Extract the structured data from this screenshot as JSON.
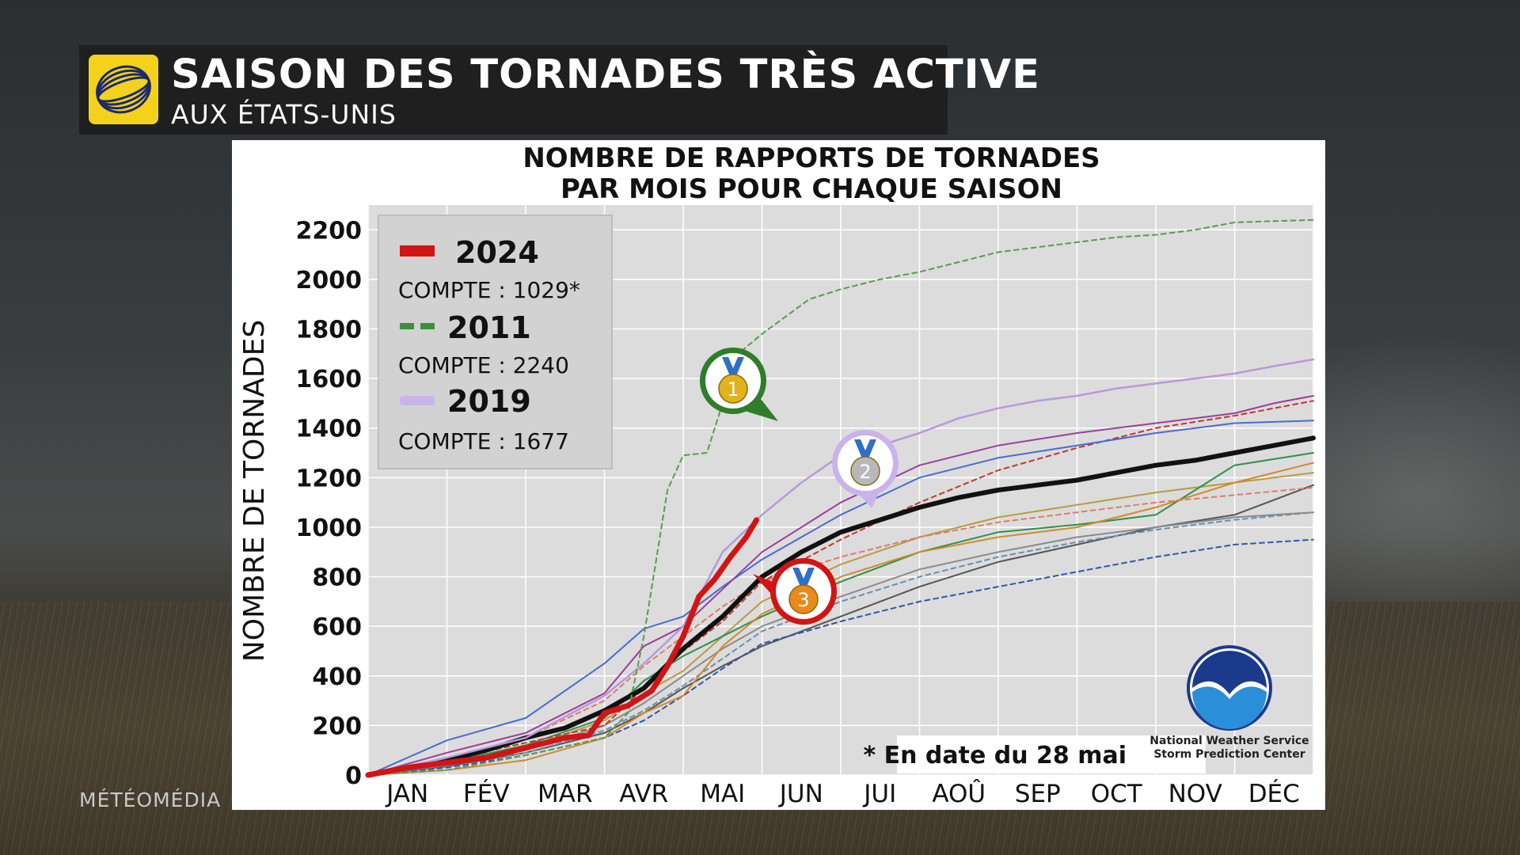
{
  "header": {
    "title": "SAISON DES TORNADES TRÈS ACTIVE",
    "subtitle": "AUX ÉTATS-UNIS"
  },
  "brand": "MÉTÉOMÉDIA",
  "chart_data": {
    "type": "line",
    "title_line1": "NOMBRE DE RAPPORTS DE TORNADES",
    "title_line2": "PAR MOIS POUR CHAQUE SAISON",
    "ylabel": "NOMBRE DE TORNADES",
    "xlabel": "",
    "ylim": [
      0,
      2300
    ],
    "yticks": [
      0,
      200,
      400,
      600,
      800,
      1000,
      1200,
      1400,
      1600,
      1800,
      2000,
      2200
    ],
    "xlim": [
      0,
      12
    ],
    "categories": [
      "JAN",
      "FÉV",
      "MAR",
      "AVR",
      "MAI",
      "JUN",
      "JUI",
      "AOÛ",
      "SEP",
      "OCT",
      "NOV",
      "DÉC"
    ],
    "grid": true,
    "legend_position": "top-left",
    "legend": [
      {
        "year": "2024",
        "count_label": "COMPTE : 1029*",
        "style": "thick-solid",
        "color": "#d21414"
      },
      {
        "year": "2011",
        "count_label": "COMPTE : 2240",
        "style": "dashed",
        "color": "#3f8f3a"
      },
      {
        "year": "2019",
        "count_label": "COMPTE : 1677",
        "style": "solid",
        "color": "#c9b3ea"
      }
    ],
    "footnote": "* En date du 28 mai",
    "source_line1": "National Weather Service",
    "source_line2": "Storm Prediction Center",
    "medals": [
      {
        "rank": "1",
        "series": "2011",
        "color": "#e2b21c",
        "ring": "#2f7d2a"
      },
      {
        "rank": "2",
        "series": "2019",
        "color": "#b8b8b8",
        "ring": "#c9b3ea"
      },
      {
        "rank": "3",
        "series": "2024",
        "color": "#e98a1e",
        "ring": "#d21414"
      }
    ],
    "series": [
      {
        "name": "2024",
        "color": "#d21414",
        "width": 7,
        "dash": "",
        "x": [
          0,
          0.5,
          1,
          1.5,
          2,
          2.5,
          2.8,
          3,
          3.3,
          3.6,
          3.8,
          4,
          4.2,
          4.4,
          4.6,
          4.8,
          4.93
        ],
        "y": [
          0,
          30,
          50,
          70,
          110,
          150,
          160,
          250,
          280,
          340,
          440,
          560,
          720,
          790,
          880,
          960,
          1029
        ]
      },
      {
        "name": "2011",
        "color": "#5c9a52",
        "width": 2,
        "dash": "6,5",
        "x": [
          0,
          1,
          2,
          3,
          3.3,
          3.5,
          3.8,
          4,
          4.3,
          4.5,
          4.7,
          5,
          5.3,
          5.6,
          6,
          6.5,
          7,
          7.5,
          8,
          8.5,
          9,
          9.5,
          10,
          10.5,
          11,
          11.5,
          12
        ],
        "y": [
          0,
          20,
          80,
          150,
          250,
          560,
          1150,
          1290,
          1300,
          1500,
          1700,
          1780,
          1850,
          1920,
          1960,
          2000,
          2030,
          2070,
          2110,
          2130,
          2150,
          2170,
          2180,
          2200,
          2230,
          2235,
          2240
        ]
      },
      {
        "name": "2019",
        "color": "#b69ad8",
        "width": 2.5,
        "dash": "",
        "x": [
          0,
          1,
          2,
          3,
          3.5,
          4,
          4.5,
          5,
          5.5,
          6,
          6.5,
          7,
          7.5,
          8,
          8.5,
          9,
          9.5,
          10,
          10.5,
          11,
          11.5,
          12
        ],
        "y": [
          0,
          70,
          150,
          320,
          450,
          600,
          900,
          1050,
          1180,
          1290,
          1330,
          1380,
          1440,
          1480,
          1510,
          1530,
          1560,
          1580,
          1600,
          1620,
          1650,
          1677
        ]
      },
      {
        "name": "",
        "color": "#111111",
        "width": 6,
        "dash": "",
        "x": [
          0,
          0.5,
          1,
          1.5,
          2,
          2.5,
          3,
          3.5,
          4,
          4.5,
          5,
          5.5,
          6,
          6.5,
          7,
          7.5,
          8,
          8.5,
          9,
          9.5,
          10,
          10.5,
          11,
          11.5,
          12
        ],
        "y": [
          0,
          30,
          60,
          100,
          150,
          190,
          260,
          350,
          510,
          640,
          800,
          900,
          980,
          1030,
          1080,
          1120,
          1150,
          1170,
          1190,
          1220,
          1250,
          1270,
          1300,
          1330,
          1360
        ]
      },
      {
        "name": "",
        "color": "#9b3f9b",
        "width": 2,
        "dash": "",
        "x": [
          0,
          1,
          2,
          3,
          3.5,
          4,
          4.5,
          5,
          6,
          7,
          8,
          9,
          10,
          11,
          11.5,
          12
        ],
        "y": [
          0,
          90,
          170,
          330,
          520,
          600,
          750,
          900,
          1100,
          1250,
          1330,
          1380,
          1420,
          1460,
          1500,
          1530
        ]
      },
      {
        "name": "",
        "color": "#4b6ad0",
        "width": 2,
        "dash": "",
        "x": [
          0,
          1,
          2,
          3,
          3.5,
          4,
          4.5,
          5,
          6,
          7,
          8,
          9,
          10,
          11,
          12
        ],
        "y": [
          0,
          140,
          230,
          450,
          590,
          640,
          760,
          870,
          1050,
          1200,
          1280,
          1330,
          1380,
          1420,
          1430
        ]
      },
      {
        "name": "",
        "color": "#c0392b",
        "width": 2,
        "dash": "6,5",
        "x": [
          0,
          1,
          2,
          3,
          3.5,
          4,
          4.5,
          5,
          6,
          7,
          8,
          9,
          10,
          11,
          12
        ],
        "y": [
          0,
          60,
          130,
          200,
          350,
          500,
          620,
          780,
          950,
          1100,
          1230,
          1320,
          1400,
          1450,
          1510
        ]
      },
      {
        "name": "",
        "color": "#d4882a",
        "width": 2,
        "dash": "",
        "x": [
          0,
          1,
          2,
          3,
          3.5,
          4,
          4.5,
          5,
          6,
          7,
          8,
          9,
          10,
          11,
          12
        ],
        "y": [
          0,
          20,
          60,
          150,
          250,
          320,
          520,
          650,
          800,
          900,
          960,
          1000,
          1080,
          1180,
          1260
        ]
      },
      {
        "name": "",
        "color": "#2f8f4a",
        "width": 2,
        "dash": "",
        "x": [
          0,
          1,
          2,
          3,
          3.5,
          4,
          4.5,
          5,
          6,
          7,
          8,
          9,
          10,
          11,
          12
        ],
        "y": [
          0,
          50,
          120,
          230,
          380,
          480,
          560,
          640,
          780,
          900,
          980,
          1010,
          1050,
          1250,
          1300
        ]
      },
      {
        "name": "",
        "color": "#8a8a8a",
        "width": 2,
        "dash": "",
        "x": [
          0,
          1,
          2,
          3,
          3.5,
          4,
          4.5,
          5,
          6,
          7,
          8,
          9,
          10,
          11,
          12
        ],
        "y": [
          0,
          40,
          100,
          200,
          290,
          400,
          510,
          600,
          720,
          830,
          900,
          960,
          1000,
          1040,
          1060
        ]
      },
      {
        "name": "",
        "color": "#3355aa",
        "width": 2,
        "dash": "6,5",
        "x": [
          0,
          1,
          2,
          3,
          3.5,
          4,
          4.5,
          5,
          6,
          7,
          8,
          9,
          10,
          11,
          12
        ],
        "y": [
          0,
          30,
          80,
          150,
          220,
          320,
          430,
          530,
          620,
          700,
          760,
          820,
          880,
          930,
          950
        ]
      },
      {
        "name": "",
        "color": "#e07b6b",
        "width": 2,
        "dash": "6,5",
        "x": [
          0,
          1,
          2,
          3,
          3.5,
          4,
          4.5,
          5,
          6,
          7,
          8,
          9,
          10,
          11,
          12
        ],
        "y": [
          0,
          70,
          150,
          300,
          440,
          560,
          680,
          780,
          880,
          960,
          1020,
          1060,
          1100,
          1130,
          1160
        ]
      },
      {
        "name": "",
        "color": "#6a8fb0",
        "width": 2,
        "dash": "6,5",
        "x": [
          0,
          1,
          2,
          3,
          3.5,
          4,
          4.5,
          5,
          6,
          7,
          8,
          9,
          10,
          11,
          12
        ],
        "y": [
          0,
          30,
          90,
          180,
          260,
          360,
          470,
          580,
          700,
          800,
          880,
          940,
          990,
          1030,
          1060
        ]
      },
      {
        "name": "",
        "color": "#b89b45",
        "width": 2,
        "dash": "",
        "x": [
          0,
          1,
          2,
          3,
          3.5,
          4,
          4.5,
          5,
          6,
          7,
          8,
          9,
          10,
          11,
          12
        ],
        "y": [
          0,
          40,
          110,
          220,
          330,
          420,
          560,
          700,
          850,
          960,
          1040,
          1090,
          1140,
          1180,
          1220
        ]
      },
      {
        "name": "",
        "color": "#555555",
        "width": 2,
        "dash": "",
        "x": [
          0,
          1,
          2,
          3,
          3.5,
          4,
          4.5,
          5,
          6,
          7,
          8,
          9,
          10,
          11,
          12
        ],
        "y": [
          0,
          35,
          90,
          170,
          250,
          350,
          440,
          520,
          640,
          760,
          860,
          930,
          1000,
          1050,
          1170
        ]
      }
    ]
  }
}
